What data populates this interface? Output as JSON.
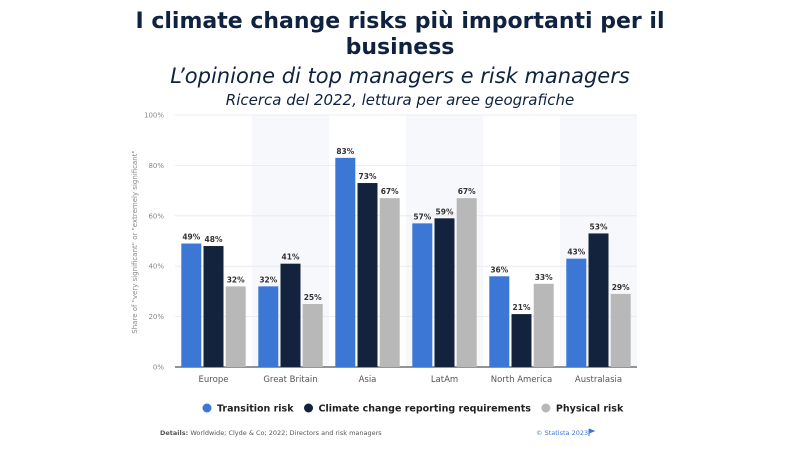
{
  "title_line1": "I climate change risks più importanti per il",
  "title_line2": "business",
  "subtitle1": "L’opinione di top managers e risk managers",
  "subtitle2": "Ricerca del 2022, lettura per aree geografiche",
  "details_label": "Details:",
  "details_text": "Worldwide; Clyde & Co; 2022; Directors and risk managers",
  "copyright": "© Statista 2023",
  "chart_data": {
    "type": "bar",
    "categories": [
      "Europe",
      "Great Britain",
      "Asia",
      "LatAm",
      "North America",
      "Australasia"
    ],
    "series": [
      {
        "name": "Transition risk",
        "color": "#3d77d6",
        "values": [
          49,
          32,
          83,
          57,
          36,
          43
        ]
      },
      {
        "name": "Climate change reporting requirements",
        "color": "#14233d",
        "values": [
          48,
          41,
          73,
          59,
          21,
          53
        ]
      },
      {
        "name": "Physical risk",
        "color": "#b8b8b8",
        "values": [
          32,
          25,
          67,
          67,
          33,
          29
        ]
      }
    ],
    "ylabel": "Share of \"very significant\" or \"extremely significant\"",
    "ylim": [
      0,
      100
    ],
    "yticks": [
      "0%",
      "20%",
      "40%",
      "60%",
      "80%",
      "100%"
    ],
    "grid": true,
    "legend": "bottom"
  }
}
